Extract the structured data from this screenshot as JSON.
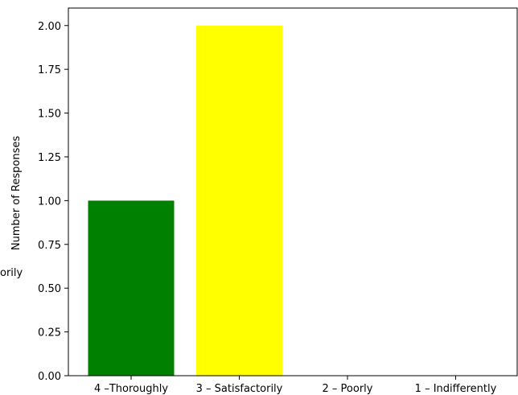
{
  "chart_data": {
    "type": "bar",
    "categories": [
      "4 –Thoroughly",
      "3 – Satisfactorily",
      "2 – Poorly",
      "1 – Indifferently"
    ],
    "values": [
      1,
      2,
      0,
      0
    ],
    "colors": [
      "#008000",
      "#ffff00",
      "#808080",
      "#808080"
    ],
    "title": "",
    "xlabel": "",
    "ylabel": "Number of Responses",
    "ylim": [
      0,
      2.1
    ],
    "yticks": [
      "0.00",
      "0.25",
      "0.50",
      "0.75",
      "1.00",
      "1.25",
      "1.50",
      "1.75",
      "2.00"
    ],
    "grid": false,
    "clipped_text": "orily"
  }
}
